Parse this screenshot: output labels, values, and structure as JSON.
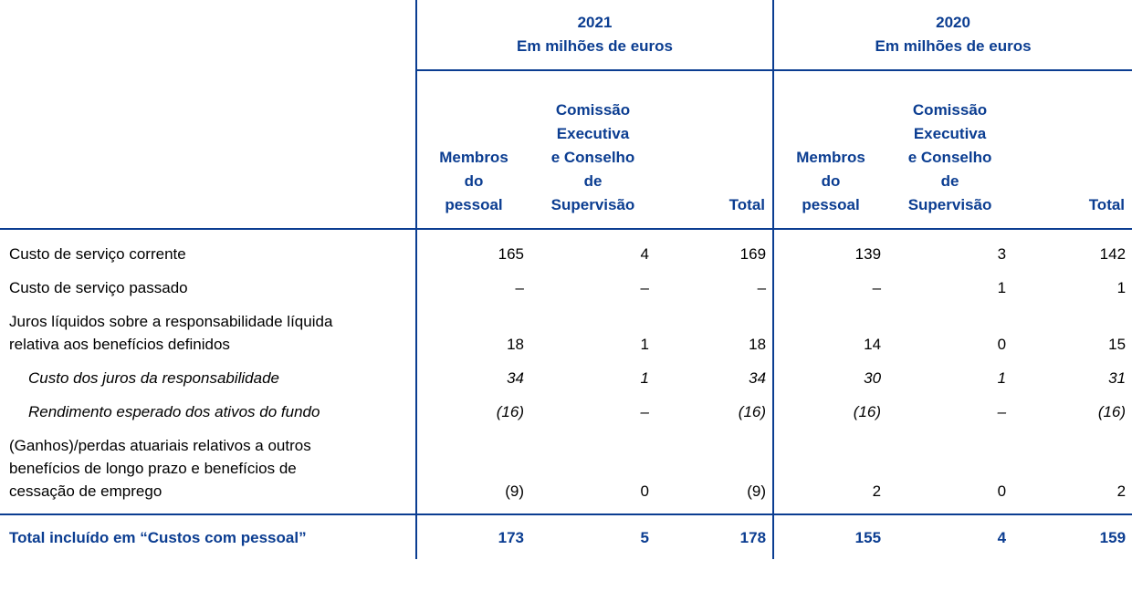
{
  "header": {
    "year_2021": "2021",
    "year_2020": "2020",
    "unit": "Em milhões de euros",
    "columns": {
      "staff": [
        "Membros",
        "do",
        "pessoal"
      ],
      "board": [
        "Comissão",
        "Executiva",
        "e Conselho",
        "de",
        "Supervisão"
      ],
      "total": "Total"
    }
  },
  "rows": [
    {
      "label": [
        "Custo de serviço corrente"
      ],
      "values": [
        "165",
        "4",
        "169",
        "139",
        "3",
        "142"
      ]
    },
    {
      "label": [
        "Custo de serviço passado"
      ],
      "values": [
        "–",
        "–",
        "–",
        "–",
        "1",
        "1"
      ]
    },
    {
      "label": [
        "Juros líquidos sobre a responsabilidade líquida",
        "relativa aos benefícios definidos"
      ],
      "values": [
        "18",
        "1",
        "18",
        "14",
        "0",
        "15"
      ]
    },
    {
      "label": [
        "Custo dos juros da responsabilidade"
      ],
      "values": [
        "34",
        "1",
        "34",
        "30",
        "1",
        "31"
      ]
    },
    {
      "label": [
        "Rendimento esperado dos ativos do fundo"
      ],
      "values": [
        "(16)",
        "–",
        "(16)",
        "(16)",
        "–",
        "(16)"
      ]
    },
    {
      "label": [
        "(Ganhos)/perdas atuariais relativos a outros",
        "benefícios de longo prazo e benefícios de",
        "cessação de emprego"
      ],
      "values": [
        "(9)",
        "0",
        "(9)",
        "2",
        "0",
        "2"
      ]
    }
  ],
  "total": {
    "label": "Total incluído em “Custos com pessoal”",
    "values": [
      "173",
      "5",
      "178",
      "155",
      "4",
      "159"
    ]
  }
}
